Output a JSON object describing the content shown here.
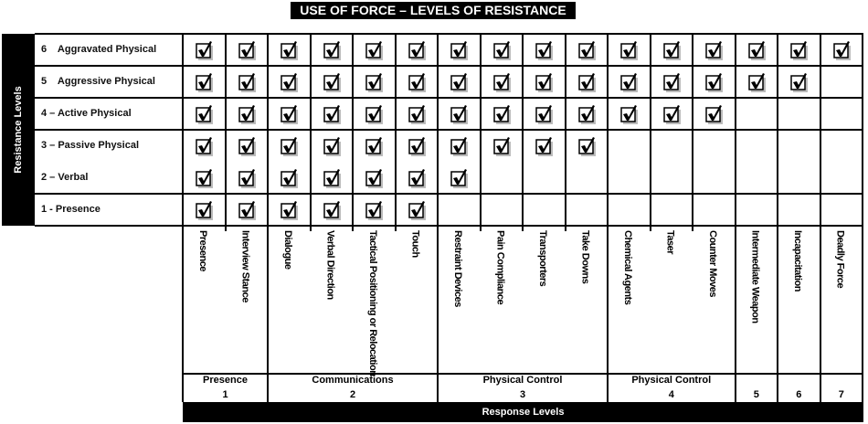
{
  "title": "USE OF FORCE – LEVELS OF RESISTANCE",
  "resistance_axis_label": "Resistance Levels",
  "response_axis_label": "Response Levels",
  "resistance_levels": [
    {
      "label": "6    Aggravated Physical",
      "checked_count": 16
    },
    {
      "label": "5    Aggressive Physical",
      "checked_count": 15
    },
    {
      "label": "4 – Active Physical",
      "checked_count": 13
    },
    {
      "label": "3 – Passive Physical",
      "checked_count": 10
    },
    {
      "label": "2 – Verbal",
      "checked_count": 7
    },
    {
      "label": "1 - Presence",
      "checked_count": 6
    }
  ],
  "responses": [
    "Presence",
    "Interview Stance",
    "Dialogue",
    "Verbal Direction",
    "Tactical Positioning or Relocation",
    "Touch",
    "Restraint Devices",
    "Pain Compliance",
    "Transporters",
    "Take Downs",
    "Chemical Agents",
    "Taser",
    "Counter Moves",
    "Intermediate Weapon",
    "Incapacitation",
    "Deadly Force"
  ],
  "response_groups": [
    {
      "name": "Presence",
      "level": "1"
    },
    {
      "name": "Communications",
      "level": "2"
    },
    {
      "name": "Physical Control",
      "level": "3"
    },
    {
      "name": "Physical Control",
      "level": "4"
    },
    {
      "name": "",
      "level": "5"
    },
    {
      "name": "",
      "level": "6"
    },
    {
      "name": "",
      "level": "7"
    }
  ]
}
